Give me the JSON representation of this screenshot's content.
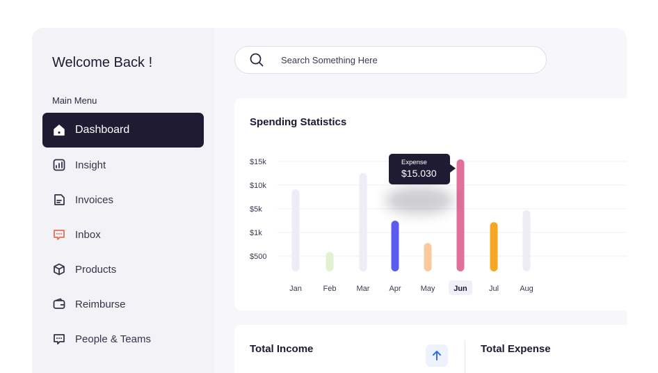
{
  "sidebar": {
    "welcome": "Welcome Back !",
    "menu_label": "Main Menu",
    "items": [
      {
        "label": "Dashboard",
        "icon": "home-icon",
        "active": true
      },
      {
        "label": "Insight",
        "icon": "chart-icon"
      },
      {
        "label": "Invoices",
        "icon": "invoice-icon"
      },
      {
        "label": "Inbox",
        "icon": "message-icon"
      },
      {
        "label": "Products",
        "icon": "box-icon"
      },
      {
        "label": "Reimburse",
        "icon": "wallet-icon"
      },
      {
        "label": "People & Teams",
        "icon": "chat-people-icon"
      }
    ]
  },
  "search": {
    "placeholder": "Search Something Here"
  },
  "stats": {
    "title": "Spending Statistics",
    "tooltip": {
      "label": "Expense",
      "value": "$15.030"
    }
  },
  "chart_data": {
    "type": "bar",
    "categories": [
      "Jan",
      "Feb",
      "Mar",
      "Apr",
      "May",
      "Jun",
      "Jul",
      "Aug"
    ],
    "values": [
      11000,
      2600,
      13200,
      6800,
      3800,
      15030,
      6600,
      8200
    ],
    "yticks": [
      "$15k",
      "$10k",
      "$5k",
      "$1k",
      "$500"
    ],
    "selected": "Jun",
    "colors": [
      "#ededf6",
      "#e3f0d1",
      "#ededf6",
      "#5b5bf0",
      "#fcc89e",
      "#e07099",
      "#f5a623",
      "#ededf6"
    ],
    "grid": true
  },
  "income": {
    "title": "Total Income"
  },
  "expense": {
    "title": "Total Expense"
  },
  "colors": {
    "accent": "#1e1b33",
    "up_arrow": "#2f6df0"
  }
}
